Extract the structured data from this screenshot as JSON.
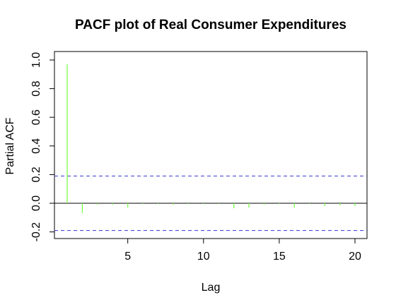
{
  "chart_data": {
    "type": "bar",
    "title": "PACF plot of Real Consumer Expenditures",
    "xlabel": "Lag",
    "ylabel": "Partial ACF",
    "xlim": [
      0.5,
      20.7
    ],
    "ylim": [
      -0.23,
      1.05
    ],
    "x_ticks": [
      5,
      10,
      15,
      20
    ],
    "y_ticks": [
      -0.2,
      0.0,
      0.2,
      0.4,
      0.6,
      0.8,
      1.0
    ],
    "x_tick_labels": [
      "5",
      "10",
      "15",
      "20"
    ],
    "y_tick_labels": [
      "-0.2",
      "0.0",
      "0.2",
      "0.4",
      "0.6",
      "0.8",
      "1.0"
    ],
    "confidence_bound": 0.19,
    "bar_color": "#7CFC4A",
    "bound_color": "#4B4BD6",
    "lags": [
      1,
      2,
      3,
      4,
      5,
      6,
      7,
      8,
      9,
      10,
      11,
      12,
      13,
      14,
      15,
      16,
      17,
      18,
      19,
      20
    ],
    "values": [
      0.97,
      -0.07,
      -0.01,
      -0.01,
      -0.03,
      -0.005,
      -0.005,
      -0.01,
      -0.005,
      -0.005,
      -0.005,
      -0.035,
      -0.03,
      -0.01,
      -0.005,
      -0.03,
      -0.005,
      -0.02,
      -0.015,
      -0.02
    ]
  }
}
